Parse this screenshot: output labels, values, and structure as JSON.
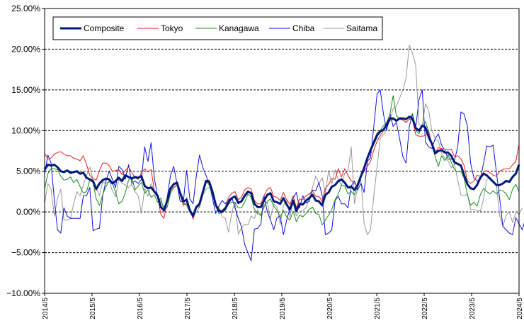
{
  "chart_data": {
    "type": "line",
    "title": "",
    "xlabel": "",
    "ylabel": "",
    "ylim": [
      -10,
      25
    ],
    "yticks": [
      -10,
      -5,
      0,
      5,
      10,
      15,
      20,
      25
    ],
    "ytick_labels": [
      "−10.00%",
      "−5.00%",
      "0.00%",
      "5.00%",
      "10.00%",
      "15.00%",
      "20.00%",
      "25.00%"
    ],
    "xtick_labels": [
      "2014/5",
      "2015/5",
      "2016/5",
      "2017/5",
      "2018/5",
      "2019/5",
      "2020/5",
      "2021/5",
      "2022/5",
      "2023/5",
      "2024/5"
    ],
    "grid": "horizontal-dashed",
    "legend_position": "top-left",
    "x_start": "2014/5",
    "x_end": "2024/5",
    "series": [
      {
        "name": "Composite",
        "color": "#001a7a",
        "width": 3,
        "values": [
          5.2,
          5.8,
          5.7,
          5.8,
          5.5,
          5.0,
          4.9,
          5.1,
          4.8,
          4.9,
          5.0,
          4.7,
          4.8,
          4.2,
          4.0,
          3.8,
          2.8,
          3.5,
          3.9,
          4.1,
          4.0,
          3.5,
          3.8,
          4.2,
          3.8,
          4.5,
          4.3,
          4.1,
          4.3,
          4.2,
          4.4,
          3.2,
          2.9,
          3.0,
          2.5,
          2.0,
          0.6,
          0.2,
          1.4,
          2.9,
          3.4,
          3.6,
          2.3,
          1.3,
          1.5,
          0.2,
          -0.5,
          0.6,
          1.0,
          2.4,
          3.8,
          3.7,
          2.5,
          0.9,
          0.1,
          0.0,
          0.4,
          1.2,
          1.7,
          1.9,
          1.1,
          1.3,
          2.0,
          2.5,
          2.3,
          1.0,
          0.6,
          0.6,
          1.4,
          2.1,
          2.3,
          1.3,
          1.2,
          1.0,
          1.7,
          0.9,
          0.3,
          1.4,
          0.1,
          1.0,
          0.9,
          1.4,
          1.7,
          2.1,
          1.4,
          1.3,
          0.8,
          2.1,
          2.4,
          3.1,
          3.3,
          3.8,
          4.0,
          3.6,
          3.0,
          3.1,
          2.7,
          3.3,
          4.4,
          5.4,
          6.6,
          7.6,
          8.5,
          9.4,
          9.9,
          10.1,
          10.7,
          11.5,
          11.5,
          11.2,
          11.5,
          11.5,
          11.4,
          11.7,
          11.5,
          10.3,
          10.0,
          10.6,
          10.4,
          9.2,
          8.4,
          7.2,
          7.5,
          7.6,
          7.3,
          7.3,
          6.9,
          6.1,
          5.9,
          5.7,
          4.5,
          3.4,
          2.9,
          2.8,
          3.3,
          4.2,
          4.7,
          4.5,
          4.1,
          3.7,
          3.3,
          3.3,
          3.5,
          3.8,
          3.7,
          4.3,
          4.7,
          5.8
        ]
      },
      {
        "name": "Tokyo",
        "color": "#e52020",
        "width": 1,
        "values": [
          7.2,
          6.5,
          6.6,
          7.1,
          7.3,
          7.4,
          7.1,
          6.9,
          6.9,
          6.6,
          6.5,
          6.3,
          6.9,
          5.8,
          4.5,
          4.1,
          3.9,
          5.1,
          6.0,
          6.0,
          5.7,
          5.0,
          5.1,
          5.2,
          4.6,
          5.1,
          5.5,
          4.9,
          4.2,
          4.0,
          4.8,
          5.3,
          4.9,
          5.2,
          2.6,
          2.0,
          -0.3,
          -0.8,
          1.3,
          2.7,
          3.0,
          3.3,
          2.1,
          0.9,
          1.0,
          0.3,
          -0.9,
          0.6,
          0.6,
          2.7,
          3.9,
          3.9,
          2.7,
          0.7,
          0.3,
          0.2,
          0.6,
          1.8,
          2.3,
          2.5,
          1.5,
          1.8,
          2.7,
          3.0,
          2.8,
          1.4,
          1.0,
          1.0,
          2.0,
          2.8,
          3.0,
          1.9,
          1.8,
          1.4,
          2.4,
          1.5,
          0.9,
          2.0,
          0.5,
          1.6,
          1.5,
          2.0,
          2.2,
          2.6,
          1.9,
          1.9,
          1.3,
          2.9,
          3.4,
          4.1,
          4.0,
          5.3,
          4.3,
          5.3,
          4.5,
          3.8,
          3.5,
          3.1,
          4.3,
          5.0,
          5.6,
          6.2,
          7.6,
          8.7,
          9.4,
          10.0,
          10.6,
          11.2,
          11.4,
          11.3,
          11.4,
          11.3,
          11.0,
          11.4,
          11.3,
          9.5,
          9.3,
          9.3,
          9.4,
          9.9,
          8.3,
          7.3,
          7.9,
          7.8,
          7.7,
          7.6,
          7.7,
          6.8,
          6.9,
          6.5,
          5.7,
          3.8,
          3.5,
          3.8,
          4.5,
          4.4,
          4.9,
          5.1,
          4.8,
          4.5,
          4.4,
          5.0,
          5.2,
          5.3,
          5.3,
          5.8,
          6.2,
          8.3
        ]
      },
      {
        "name": "Kanagawa",
        "color": "#1a8c1a",
        "width": 1,
        "values": [
          2.8,
          4.7,
          5.3,
          5.3,
          5.2,
          4.4,
          3.9,
          4.0,
          4.3,
          3.6,
          4.0,
          3.1,
          2.3,
          2.5,
          3.9,
          3.6,
          1.6,
          0.8,
          2.1,
          3.1,
          3.8,
          3.6,
          2.4,
          1.0,
          1.3,
          2.3,
          3.9,
          4.3,
          2.7,
          3.2,
          3.6,
          2.3,
          2.7,
          1.8,
          2.1,
          1.2,
          1.7,
          0.2,
          0.6,
          2.3,
          3.0,
          3.3,
          2.2,
          1.1,
          0.8,
          0.0,
          -0.5,
          0.5,
          0.8,
          2.5,
          3.8,
          3.3,
          2.2,
          0.7,
          -0.2,
          -0.1,
          0.2,
          1.0,
          1.2,
          1.2,
          0.5,
          0.5,
          1.2,
          2.2,
          1.8,
          0.3,
          -0.2,
          -0.4,
          0.6,
          1.3,
          1.6,
          0.7,
          0.2,
          -0.6,
          0.2,
          -0.6,
          -1.0,
          0.1,
          -1.2,
          -0.4,
          -0.6,
          -0.2,
          0.3,
          0.6,
          -0.2,
          -0.3,
          -1.6,
          -1.0,
          -0.4,
          0.3,
          1.5,
          2.2,
          3.3,
          3.2,
          2.2,
          2.5,
          2.1,
          3.2,
          4.4,
          5.4,
          6.8,
          7.8,
          8.8,
          9.7,
          10.0,
          10.6,
          11.0,
          12.0,
          14.3,
          11.8,
          11.5,
          11.3,
          11.0,
          11.4,
          12.1,
          10.0,
          9.6,
          10.6,
          11.1,
          9.9,
          8.4,
          6.8,
          5.6,
          6.9,
          6.3,
          7.0,
          6.1,
          5.2,
          4.9,
          5.0,
          4.1,
          2.1,
          0.8,
          1.2,
          0.7,
          2.1,
          2.9,
          2.5,
          2.2,
          2.6,
          2.2,
          2.7,
          2.6,
          2.2,
          1.5,
          2.8,
          3.4,
          2.5
        ]
      },
      {
        "name": "Chiba",
        "color": "#1010e0",
        "width": 1,
        "values": [
          4.6,
          7.0,
          6.0,
          1.5,
          -2.2,
          -2.6,
          0.5,
          -0.5,
          -0.8,
          -0.8,
          -0.8,
          -0.8,
          2.0,
          2.0,
          3.0,
          -2.3,
          -2.1,
          -2.0,
          2.0,
          3.8,
          5.0,
          4.0,
          3.0,
          5.6,
          5.2,
          4.0,
          5.8,
          3.5,
          3.8,
          3.5,
          4.0,
          8.0,
          6.2,
          8.5,
          4.1,
          2.0,
          0.8,
          0.0,
          1.8,
          4.5,
          5.6,
          3.5,
          1.3,
          1.3,
          5.1,
          1.6,
          1.0,
          4.4,
          7.0,
          5.5,
          4.5,
          3.5,
          1.7,
          -0.2,
          0.7,
          1.4,
          1.0,
          1.5,
          1.8,
          0.5,
          -0.8,
          -1.8,
          -4.0,
          -5.0,
          -6.0,
          -2.1,
          -2.0,
          -1.5,
          2.0,
          0.0,
          -1.0,
          -2.2,
          -0.7,
          -0.5,
          -2.8,
          -1.0,
          0.4,
          1.7,
          2.4,
          0.5,
          2.0,
          1.1,
          1.3,
          2.7,
          2.6,
          3.6,
          2.0,
          -2.8,
          -2.6,
          -2.2,
          1.4,
          1.9,
          1.0,
          1.0,
          0.5,
          3.2,
          3.8,
          2.7,
          3.5,
          2.4,
          6.2,
          6.7,
          10.5,
          14.5,
          15.0,
          12.0,
          10.0,
          12.1,
          10.5,
          11.0,
          9.0,
          6.8,
          6.0,
          10.5,
          12.0,
          10.3,
          13.8,
          15.0,
          8.6,
          8.0,
          7.8,
          9.0,
          9.6,
          8.2,
          7.6,
          6.5,
          6.5,
          6.3,
          8.0,
          12.3,
          12.0,
          10.5,
          6.0,
          4.2,
          3.8,
          4.0,
          6.0,
          8.1,
          8.0,
          8.2,
          4.8,
          1.6,
          -1.8,
          -2.2,
          -2.6,
          -2.8,
          -0.7,
          -1.5,
          -2.2,
          -0.8
        ]
      },
      {
        "name": "Saitama",
        "color": "#999999",
        "width": 1,
        "values": [
          1.0,
          3.5,
          2.8,
          -0.5,
          1.7,
          2.8,
          -1.0,
          -1.0,
          -0.8,
          1.0,
          2.5,
          2.0,
          3.3,
          4.5,
          5.5,
          4.0,
          3.0,
          2.0,
          3.7,
          3.5,
          3.8,
          2.6,
          1.9,
          4.0,
          3.5,
          3.3,
          3.0,
          3.4,
          2.5,
          2.0,
          -0.2,
          2.9,
          1.9,
          3.5,
          2.6,
          2.0,
          1.3,
          0.6,
          1.2,
          2.8,
          3.6,
          3.4,
          2.3,
          0.7,
          1.8,
          -0.1,
          -0.6,
          0.0,
          0.6,
          2.0,
          2.8,
          3.0,
          2.4,
          0.7,
          0.6,
          -0.6,
          -0.8,
          -2.5,
          0.0,
          1.2,
          -2.7,
          -2.0,
          -1.5,
          -1.6,
          -0.5,
          -0.8,
          0.3,
          -0.5,
          0.9,
          1.2,
          -0.8,
          1.0,
          0.6,
          -1.5,
          0.8,
          1.4,
          -0.6,
          1.2,
          -0.5,
          0.0,
          0.2,
          0.5,
          1.7,
          3.0,
          4.4,
          3.5,
          4.2,
          2.3,
          5.1,
          3.4,
          5.2,
          3.9,
          3.3,
          4.8,
          5.0,
          8.0,
          1.0,
          3.0,
          4.0,
          -1.4,
          -2.8,
          -2.2,
          2.0,
          5.5,
          9.0,
          9.5,
          10.2,
          11.3,
          12.7,
          13.0,
          14.0,
          15.0,
          16.5,
          20.5,
          19.5,
          18.0,
          10.8,
          10.5,
          13.3,
          12.5,
          10.0,
          9.0,
          8.7,
          7.2,
          6.6,
          6.3,
          5.4,
          5.9,
          3.9,
          2.1,
          2.0,
          2.2,
          0.3,
          0.3,
          0.2,
          0.1,
          1.6,
          4.0,
          4.2,
          3.7,
          3.2,
          -0.5,
          -1.8,
          -0.4,
          0.0,
          -1.3,
          0.0,
          -0.3,
          0.5
        ]
      }
    ]
  }
}
